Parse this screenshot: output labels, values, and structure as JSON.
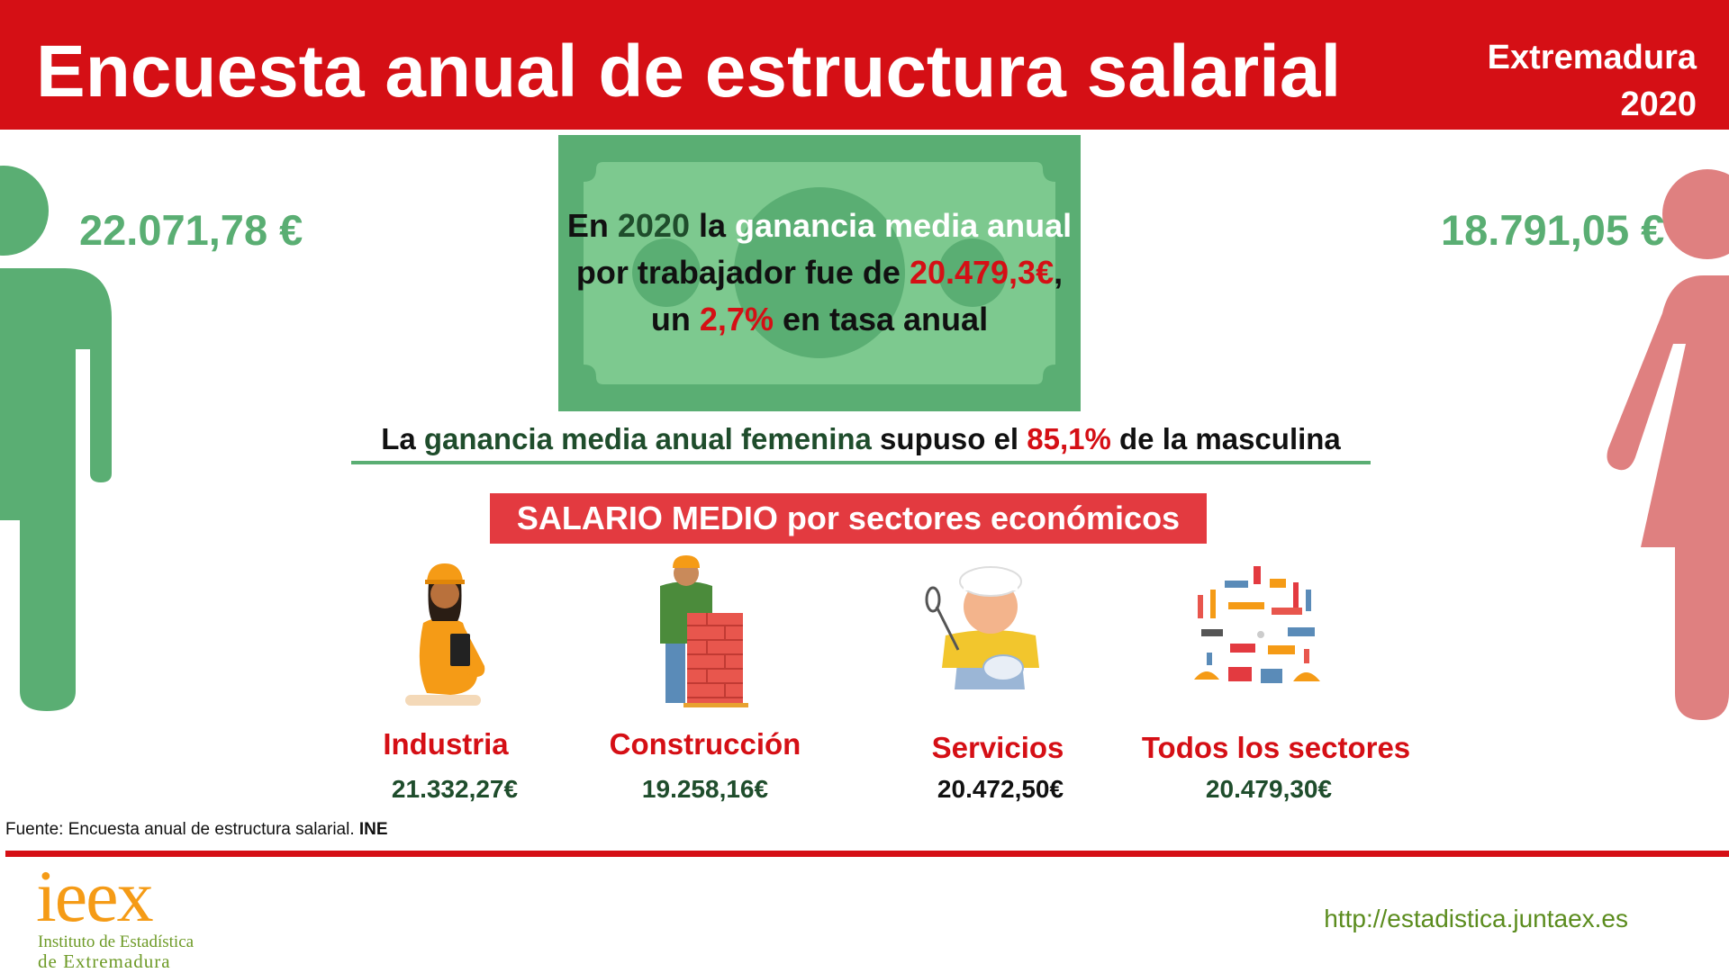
{
  "header": {
    "title": "Encuesta anual de estructura salarial",
    "region": "Extremadura",
    "year": "2020",
    "background_color": "#d50f15"
  },
  "male": {
    "amount": "22.071,78 €",
    "icon": "man-icon",
    "color": "#5aae73"
  },
  "female": {
    "amount": "18.791,05 €",
    "icon": "woman-icon",
    "color": "#df8080"
  },
  "banknote": {
    "icon": "banknote-icon",
    "p1": "En ",
    "p2": "2020",
    "p3": " la ",
    "p4": "ganancia media anual",
    "p5": "por trabajador fue de ",
    "p6": "20.479,3€",
    "p7": ",",
    "p8": "un ",
    "p9": "2,7%",
    "p10": " en tasa anual"
  },
  "female_ratio": {
    "p1": "La ",
    "p2": "ganancia media anual femenina",
    "p3": " supuso el ",
    "p4": "85,1%",
    "p5": " de la masculina"
  },
  "sectors_title": "SALARIO MEDIO por sectores económicos",
  "sectors": [
    {
      "name": "Industria",
      "value": "21.332,27€",
      "icon": "engineer-woman-icon"
    },
    {
      "name": "Construcción",
      "value": "19.258,16€",
      "icon": "bricklayer-icon"
    },
    {
      "name": "Servicios",
      "value": "20.472,50€",
      "icon": "chef-icon"
    },
    {
      "name": "Todos los sectores",
      "value": "20.479,30€",
      "icon": "tools-icon"
    }
  ],
  "source": {
    "text": "Fuente: Encuesta anual de estructura salarial. ",
    "org": "INE"
  },
  "footer": {
    "logo_word": "ieex",
    "logo_line1": "Instituto de Estadística",
    "logo_line2": "de Extremadura",
    "url": "http://estadistica.juntaex.es"
  }
}
